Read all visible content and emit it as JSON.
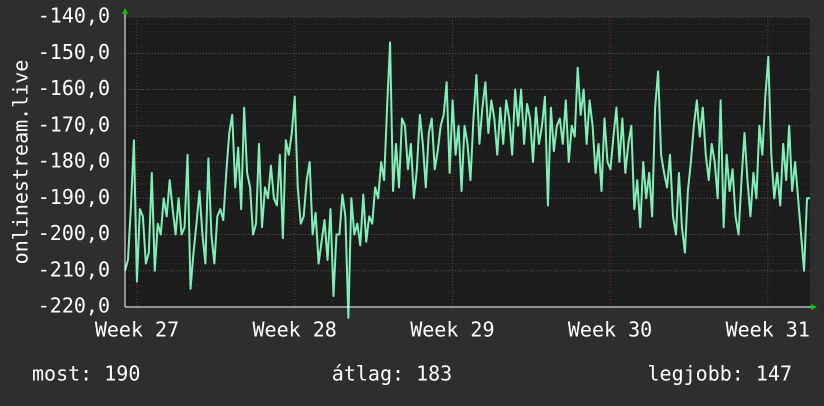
{
  "chart_data": {
    "type": "line",
    "y_label": "onlinestream.live",
    "ylim": [
      -220,
      -140
    ],
    "yticks": [
      {
        "value": -140,
        "label": "-140,0"
      },
      {
        "value": -150,
        "label": "-150,0"
      },
      {
        "value": -160,
        "label": "-160,0"
      },
      {
        "value": -170,
        "label": "-170,0"
      },
      {
        "value": -180,
        "label": "-180,0"
      },
      {
        "value": -190,
        "label": "-190,0"
      },
      {
        "value": -200,
        "label": "-200,0"
      },
      {
        "value": -210,
        "label": "-210,0"
      },
      {
        "value": -220,
        "label": "-220,0"
      }
    ],
    "xlim": [
      26.924,
      31.268
    ],
    "xticks": [
      {
        "value": 27,
        "label": "Week 27"
      },
      {
        "value": 28,
        "label": "Week 28"
      },
      {
        "value": 29,
        "label": "Week 29"
      },
      {
        "value": 30,
        "label": "Week 30"
      },
      {
        "value": 31,
        "label": "Week 31"
      }
    ],
    "grid": true,
    "color": "#80f0b8",
    "values": [
      -210,
      -207,
      -192,
      -174,
      -213,
      -193,
      -195,
      -208,
      -205,
      -183,
      -210,
      -197,
      -200,
      -190,
      -195,
      -185,
      -193,
      -200,
      -190,
      -200,
      -198,
      -178,
      -215,
      -205,
      -197,
      -188,
      -200,
      -208,
      -179,
      -200,
      -208,
      -195,
      -193,
      -196,
      -183,
      -172,
      -167,
      -187,
      -176,
      -193,
      -165,
      -183,
      -187,
      -200,
      -197,
      -175,
      -198,
      -187,
      -190,
      -181,
      -190,
      -192,
      -178,
      -201,
      -174,
      -178,
      -172,
      -162,
      -187,
      -197,
      -195,
      -185,
      -180,
      -200,
      -194,
      -208,
      -202,
      -196,
      -207,
      -193,
      -217,
      -200,
      -200,
      -189,
      -195,
      -223,
      -190,
      -200,
      -197,
      -203,
      -189,
      -202,
      -195,
      -197,
      -187,
      -190,
      -180,
      -185,
      -165,
      -147,
      -188,
      -175,
      -187,
      -168,
      -170,
      -182,
      -175,
      -190,
      -182,
      -167,
      -175,
      -187,
      -172,
      -168,
      -182,
      -177,
      -170,
      -167,
      -158,
      -183,
      -163,
      -178,
      -170,
      -188,
      -170,
      -175,
      -185,
      -168,
      -156,
      -175,
      -165,
      -158,
      -172,
      -163,
      -168,
      -178,
      -165,
      -175,
      -163,
      -168,
      -178,
      -160,
      -170,
      -160,
      -175,
      -164,
      -168,
      -180,
      -165,
      -175,
      -170,
      -162,
      -192,
      -165,
      -177,
      -170,
      -168,
      -175,
      -163,
      -180,
      -170,
      -173,
      -154,
      -167,
      -160,
      -175,
      -163,
      -170,
      -183,
      -175,
      -188,
      -168,
      -180,
      -182,
      -173,
      -165,
      -180,
      -168,
      -183,
      -175,
      -170,
      -193,
      -185,
      -198,
      -180,
      -190,
      -183,
      -195,
      -165,
      -155,
      -178,
      -183,
      -187,
      -178,
      -195,
      -200,
      -183,
      -198,
      -205,
      -188,
      -180,
      -170,
      -163,
      -173,
      -165,
      -178,
      -185,
      -175,
      -180,
      -190,
      -163,
      -198,
      -178,
      -188,
      -182,
      -195,
      -200,
      -185,
      -172,
      -185,
      -195,
      -183,
      -190,
      -170,
      -178,
      -162,
      -151,
      -178,
      -190,
      -183,
      -192,
      -175,
      -185,
      -170,
      -188,
      -180,
      -190,
      -200,
      -210,
      -190,
      -190
    ],
    "stats": [
      "most: 190",
      "átlag: 183",
      "legjobb: 147"
    ]
  }
}
